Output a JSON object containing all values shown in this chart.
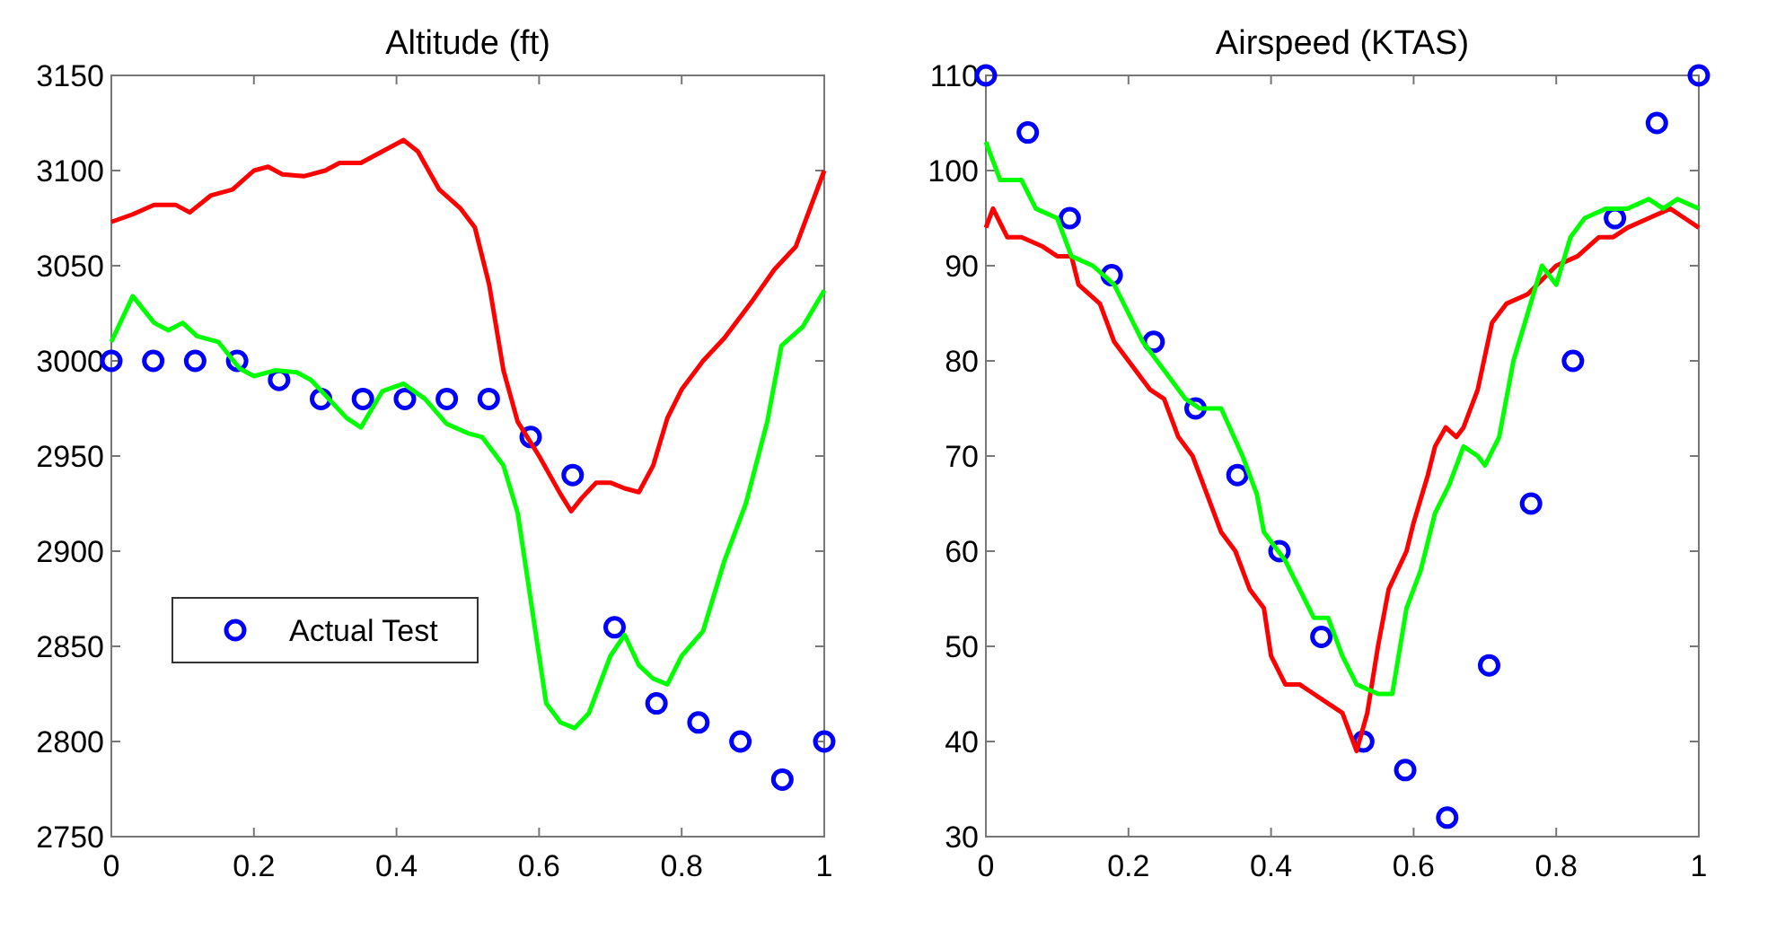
{
  "chart_data": [
    {
      "type": "line",
      "title": "Altitude (ft)",
      "xlim": [
        0,
        1
      ],
      "ylim": [
        2750,
        3150
      ],
      "xticks": [
        0,
        0.2,
        0.4,
        0.6,
        0.8,
        1
      ],
      "yticks": [
        2750,
        2800,
        2850,
        2900,
        2950,
        3000,
        3050,
        3100,
        3150
      ],
      "legend": "bottom left",
      "grid": false,
      "series": [
        {
          "name": "Actual Test",
          "type": "scatter",
          "marker": "circle",
          "color": "#0000ff",
          "x": [
            0,
            0.0588,
            0.1176,
            0.1765,
            0.2353,
            0.2941,
            0.3529,
            0.4118,
            0.4706,
            0.5294,
            0.5882,
            0.6471,
            0.7059,
            0.7647,
            0.8235,
            0.8824,
            0.9412,
            1
          ],
          "values": [
            3000,
            3000,
            3000,
            3000,
            2990,
            2980,
            2980,
            2980,
            2980,
            2980,
            2960,
            2940,
            2860,
            2820,
            2810,
            2800,
            2780,
            2800
          ]
        },
        {
          "color": "#ff0000",
          "x": [
            0,
            0.03,
            0.06,
            0.09,
            0.11,
            0.14,
            0.17,
            0.2,
            0.22,
            0.24,
            0.27,
            0.3,
            0.32,
            0.35,
            0.38,
            0.41,
            0.43,
            0.46,
            0.49,
            0.51,
            0.53,
            0.55,
            0.57,
            0.6,
            0.63,
            0.645,
            0.66,
            0.68,
            0.7,
            0.72,
            0.74,
            0.76,
            0.78,
            0.8,
            0.83,
            0.86,
            0.9,
            0.93,
            0.96,
            1
          ],
          "values": [
            3073,
            3077,
            3082,
            3082,
            3078,
            3087,
            3090,
            3100,
            3102,
            3098,
            3097,
            3100,
            3104,
            3104,
            3110,
            3116,
            3110,
            3090,
            3080,
            3070,
            3040,
            2995,
            2968,
            2950,
            2930,
            2921,
            2928,
            2936,
            2936,
            2933,
            2931,
            2945,
            2970,
            2985,
            3000,
            3012,
            3032,
            3048,
            3060,
            3100
          ]
        },
        {
          "color": "#00ff00",
          "x": [
            0,
            0.03,
            0.06,
            0.08,
            0.1,
            0.12,
            0.15,
            0.18,
            0.2,
            0.23,
            0.26,
            0.28,
            0.3,
            0.33,
            0.35,
            0.38,
            0.41,
            0.44,
            0.47,
            0.5,
            0.52,
            0.55,
            0.57,
            0.59,
            0.61,
            0.63,
            0.65,
            0.67,
            0.7,
            0.72,
            0.74,
            0.76,
            0.78,
            0.8,
            0.83,
            0.86,
            0.89,
            0.92,
            0.94,
            0.97,
            1
          ],
          "values": [
            3010,
            3034,
            3020,
            3016,
            3020,
            3013,
            3010,
            2996,
            2992,
            2995,
            2994,
            2990,
            2982,
            2970,
            2965,
            2984,
            2988,
            2980,
            2967,
            2962,
            2960,
            2945,
            2920,
            2870,
            2820,
            2810,
            2807,
            2815,
            2845,
            2856,
            2840,
            2833,
            2830,
            2845,
            2858,
            2895,
            2925,
            2968,
            3008,
            3018,
            3037
          ]
        }
      ]
    },
    {
      "type": "line",
      "title": "Airspeed (KTAS)",
      "xlim": [
        0,
        1
      ],
      "ylim": [
        30,
        110
      ],
      "xticks": [
        0,
        0.2,
        0.4,
        0.6,
        0.8,
        1
      ],
      "yticks": [
        30,
        40,
        50,
        60,
        70,
        80,
        90,
        100,
        110
      ],
      "grid": false,
      "series": [
        {
          "type": "scatter",
          "marker": "circle",
          "color": "#0000ff",
          "x": [
            0,
            0.0588,
            0.1176,
            0.1765,
            0.2353,
            0.2941,
            0.3529,
            0.4118,
            0.4706,
            0.5294,
            0.5882,
            0.6471,
            0.7059,
            0.7647,
            0.8235,
            0.8824,
            0.9412,
            1
          ],
          "values": [
            110,
            104,
            95,
            89,
            82,
            75,
            68,
            60,
            51,
            40,
            37,
            32,
            48,
            65,
            80,
            95,
            105,
            110
          ]
        },
        {
          "color": "#ff0000",
          "x": [
            0,
            0.01,
            0.03,
            0.05,
            0.08,
            0.1,
            0.12,
            0.13,
            0.16,
            0.18,
            0.2,
            0.23,
            0.25,
            0.27,
            0.29,
            0.31,
            0.33,
            0.35,
            0.37,
            0.39,
            0.4,
            0.42,
            0.44,
            0.46,
            0.48,
            0.5,
            0.52,
            0.535,
            0.55,
            0.565,
            0.59,
            0.6,
            0.62,
            0.63,
            0.645,
            0.66,
            0.67,
            0.69,
            0.71,
            0.73,
            0.76,
            0.8,
            0.83,
            0.86,
            0.88,
            0.9,
            0.93,
            0.96,
            0.98,
            1
          ],
          "values": [
            94,
            96,
            93,
            93,
            92,
            91,
            91,
            88,
            86,
            82,
            80,
            77,
            76,
            72,
            70,
            66,
            62,
            60,
            56,
            54,
            49,
            46,
            46,
            45,
            44,
            43,
            39,
            43,
            50,
            56,
            60,
            63,
            68,
            71,
            73,
            72,
            73,
            77,
            84,
            86,
            87,
            90,
            91,
            93,
            93,
            94,
            95,
            96,
            95,
            94
          ]
        },
        {
          "color": "#00ff00",
          "x": [
            0,
            0.02,
            0.05,
            0.07,
            0.1,
            0.12,
            0.15,
            0.18,
            0.2,
            0.22,
            0.25,
            0.28,
            0.3,
            0.33,
            0.36,
            0.38,
            0.39,
            0.42,
            0.44,
            0.46,
            0.48,
            0.5,
            0.52,
            0.55,
            0.57,
            0.59,
            0.61,
            0.63,
            0.65,
            0.67,
            0.69,
            0.7,
            0.72,
            0.74,
            0.76,
            0.78,
            0.8,
            0.82,
            0.84,
            0.87,
            0.9,
            0.93,
            0.95,
            0.97,
            1
          ],
          "values": [
            103,
            99,
            99,
            96,
            95,
            91,
            90,
            88,
            85,
            82,
            79,
            76,
            75,
            75,
            70,
            66,
            62,
            59,
            56,
            53,
            53,
            49,
            46,
            45,
            45,
            54,
            58,
            64,
            67,
            71,
            70,
            69,
            72,
            80,
            85,
            90,
            88,
            93,
            95,
            96,
            96,
            97,
            96,
            97,
            96
          ]
        }
      ]
    }
  ]
}
